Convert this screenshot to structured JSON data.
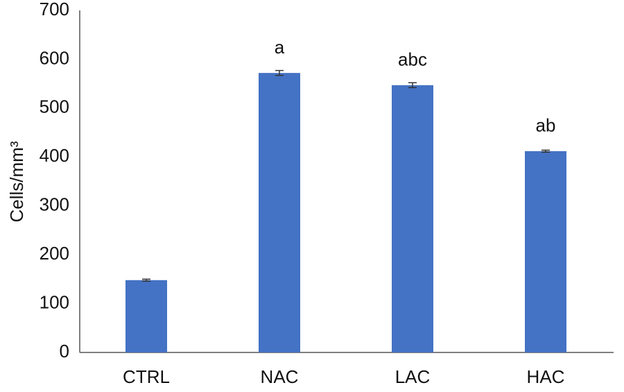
{
  "chart_data": {
    "type": "bar",
    "y_label": "Cells/mm³",
    "categories": [
      "CTRL",
      "NAC",
      "LAC",
      "HAC"
    ],
    "values": [
      148,
      572,
      547,
      412
    ],
    "errors": [
      2,
      5,
      5,
      2
    ],
    "annotations": [
      null,
      "a",
      "abc",
      "ab"
    ],
    "color": "#4472c4",
    "ylim": [
      0,
      700
    ],
    "yticks": [
      0,
      100,
      200,
      300,
      400,
      500,
      600,
      700
    ],
    "grid": false
  }
}
